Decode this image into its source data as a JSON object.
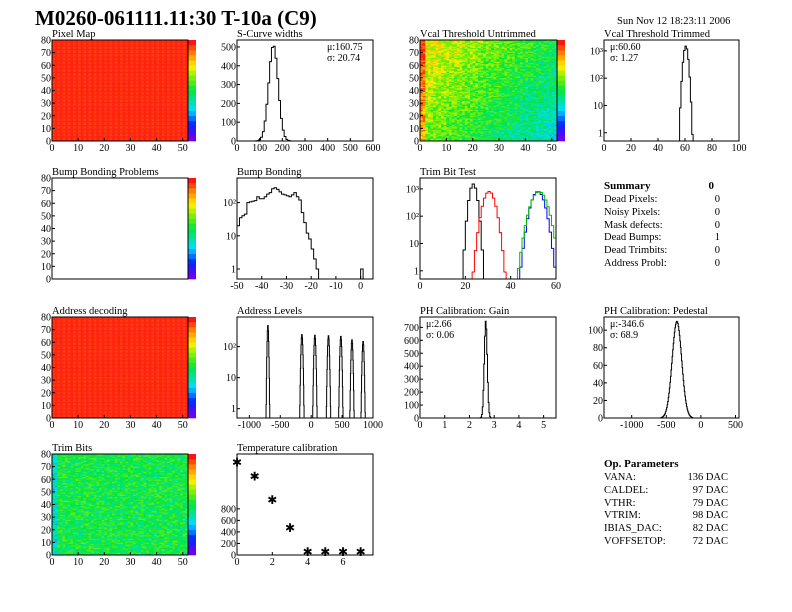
{
  "header": {
    "title": "M0260-061111.11:30 T-10a (C9)",
    "date": "Sun Nov 12 18:23:11 2006"
  },
  "summary": {
    "title": "Summary",
    "total": "0",
    "rows": [
      {
        "label": "Dead Pixels:",
        "value": "0"
      },
      {
        "label": "Noisy Pixels:",
        "value": "0"
      },
      {
        "label": "Mask defects:",
        "value": "0"
      },
      {
        "label": "Dead Bumps:",
        "value": "1"
      },
      {
        "label": "Dead Trimbits:",
        "value": "0"
      },
      {
        "label": "Address Probl:",
        "value": "0"
      }
    ]
  },
  "params": {
    "title": "Op. Parameters",
    "rows": [
      {
        "label": "VANA:",
        "value": "136 DAC"
      },
      {
        "label": "CALDEL:",
        "value": "97 DAC"
      },
      {
        "label": "VTHR:",
        "value": "79 DAC"
      },
      {
        "label": "VTRIM:",
        "value": "98 DAC"
      },
      {
        "label": "IBIAS_DAC:",
        "value": "82 DAC"
      },
      {
        "label": "VOFFSETOP:",
        "value": "72 DAC"
      }
    ]
  },
  "chart_data": [
    {
      "id": "pixelmap",
      "type": "heatmap",
      "title": "Pixel Map",
      "xlim": [
        0,
        52
      ],
      "ylim": [
        0,
        80
      ],
      "xticks": [
        "0",
        "10",
        "20",
        "30",
        "40",
        "50"
      ],
      "yticks": [
        "0",
        "10",
        "20",
        "30",
        "40",
        "50",
        "60",
        "70",
        "80"
      ],
      "pattern": "uniform-max"
    },
    {
      "id": "scurve",
      "type": "histogram",
      "title": "S-Curve widths",
      "xlim": [
        0,
        600
      ],
      "ylim": [
        0,
        537
      ],
      "xticks": [
        "0",
        "100",
        "200",
        "300",
        "400",
        "500",
        "600"
      ],
      "yticks": [
        "0",
        "100",
        "200",
        "300",
        "400",
        "500"
      ],
      "stats": [
        "μ:160.75",
        "σ: 20.74"
      ],
      "series": [
        {
          "shape": "gauss",
          "mean": 160.75,
          "sigma": 20.74,
          "peak": 510,
          "bin": 8,
          "color": "#000000"
        }
      ]
    },
    {
      "id": "vcalU",
      "type": "heatmap",
      "title": "Vcal Threshold Untrimmed",
      "xlim": [
        0,
        52
      ],
      "ylim": [
        0,
        80
      ],
      "xticks": [
        "0",
        "10",
        "20",
        "30",
        "40",
        "50"
      ],
      "yticks": [
        "0",
        "10",
        "20",
        "30",
        "40",
        "50",
        "60",
        "70",
        "80"
      ],
      "pattern": "gradient"
    },
    {
      "id": "vcalT",
      "type": "histogram",
      "title": "Vcal Threshold Trimmed",
      "log": true,
      "xlim": [
        0,
        100
      ],
      "ylim": [
        0.5,
        2500
      ],
      "xticks": [
        "0",
        "20",
        "40",
        "60",
        "80",
        "100"
      ],
      "yticks": [
        "1",
        "10",
        "10²",
        "10³"
      ],
      "stats": [
        "μ:60.60",
        "σ: 1.27"
      ],
      "series": [
        {
          "shape": "gauss",
          "mean": 60.6,
          "sigma": 1.27,
          "peak": 1500,
          "bin": 1,
          "color": "#000000"
        }
      ]
    },
    {
      "id": "bbp",
      "type": "heatmap",
      "title": "Bump Bonding Problems",
      "xlim": [
        0,
        52
      ],
      "ylim": [
        0,
        80
      ],
      "xticks": [],
      "yticks": [
        "0",
        "10",
        "20",
        "30",
        "40",
        "50",
        "60",
        "70",
        "80"
      ],
      "pattern": "empty"
    },
    {
      "id": "bb",
      "type": "histogram",
      "title": "Bump Bonding",
      "log": true,
      "xlim": [
        -50,
        5
      ],
      "ylim": [
        0.5,
        550
      ],
      "xticks": [
        "-50",
        "-40",
        "-30",
        "-20",
        "-10",
        "0"
      ],
      "yticks": [
        "1",
        "10",
        "10²"
      ],
      "stats": [],
      "series": [
        {
          "shape": "bins",
          "start": -50,
          "bin": 1,
          "color": "#000000",
          "values": [
            20,
            35,
            40,
            45,
            100,
            105,
            110,
            115,
            150,
            130,
            130,
            150,
            180,
            200,
            260,
            280,
            250,
            210,
            180,
            170,
            160,
            150,
            170,
            200,
            150,
            120,
            50,
            25,
            12,
            8,
            4,
            2,
            1,
            0,
            0,
            0,
            0,
            0,
            0,
            0,
            0,
            0,
            0,
            0,
            0,
            0,
            0,
            0,
            0,
            0,
            1,
            0,
            0,
            0,
            0
          ]
        }
      ]
    },
    {
      "id": "trim",
      "type": "histogram",
      "title": "Trim Bit Test",
      "log": true,
      "xlim": [
        0,
        60
      ],
      "ylim": [
        0.5,
        2500
      ],
      "xticks": [
        "0",
        "20",
        "40",
        "60"
      ],
      "yticks": [
        "1",
        "10",
        "10²",
        "10³"
      ],
      "stats": [],
      "series": [
        {
          "shape": "gauss",
          "mean": 23.5,
          "sigma": 1.2,
          "peak": 1500,
          "bin": 1,
          "color": "#000000"
        },
        {
          "shape": "gauss",
          "mean": 30.5,
          "sigma": 1.9,
          "peak": 800,
          "bin": 1,
          "color": "#ff0000"
        },
        {
          "shape": "gauss",
          "mean": 52,
          "sigma": 2.1,
          "peak": 800,
          "bin": 1,
          "color": "#0000ff"
        },
        {
          "shape": "gauss",
          "mean": 52.5,
          "sigma": 2.5,
          "peak": 800,
          "bin": 1,
          "color": "#00bb00"
        }
      ]
    },
    {
      "id": "addrdec",
      "type": "heatmap",
      "title": "Address decoding",
      "xlim": [
        0,
        52
      ],
      "ylim": [
        0,
        80
      ],
      "xticks": [
        "0",
        "10",
        "20",
        "30",
        "40",
        "50"
      ],
      "yticks": [
        "0",
        "10",
        "20",
        "30",
        "40",
        "50",
        "60",
        "70",
        "80"
      ],
      "pattern": "uniform-max"
    },
    {
      "id": "addrlev",
      "type": "histogram",
      "title": "Address Levels",
      "log": true,
      "xlim": [
        -1200,
        1000
      ],
      "ylim": [
        0.5,
        900
      ],
      "xticks": [
        "-1000",
        "-500",
        "0",
        "500",
        "1000"
      ],
      "yticks": [
        "1",
        "10",
        "10²"
      ],
      "stats": [],
      "series": [
        {
          "shape": "gauss",
          "mean": -700,
          "sigma": 8,
          "peak": 500,
          "bin": 5,
          "color": "#000000"
        },
        {
          "shape": "gauss",
          "mean": -150,
          "sigma": 10,
          "peak": 250,
          "bin": 5,
          "color": "#000000"
        },
        {
          "shape": "gauss",
          "mean": 60,
          "sigma": 10,
          "peak": 240,
          "bin": 5,
          "color": "#000000"
        },
        {
          "shape": "gauss",
          "mean": 280,
          "sigma": 10,
          "peak": 230,
          "bin": 5,
          "color": "#000000"
        },
        {
          "shape": "gauss",
          "mean": 480,
          "sigma": 10,
          "peak": 220,
          "bin": 5,
          "color": "#000000"
        },
        {
          "shape": "gauss",
          "mean": 660,
          "sigma": 10,
          "peak": 170,
          "bin": 5,
          "color": "#000000"
        },
        {
          "shape": "gauss",
          "mean": 840,
          "sigma": 10,
          "peak": 150,
          "bin": 5,
          "color": "#000000"
        }
      ]
    },
    {
      "id": "gain",
      "type": "histogram",
      "title": "PH Calibration: Gain",
      "xlim": [
        0,
        5.5
      ],
      "ylim": [
        0,
        780
      ],
      "xticks": [
        "0",
        "1",
        "2",
        "3",
        "4",
        "5"
      ],
      "yticks": [
        "0",
        "100",
        "200",
        "300",
        "400",
        "500",
        "600",
        "700"
      ],
      "stats": [
        "μ:2.66",
        "σ: 0.06"
      ],
      "series": [
        {
          "shape": "gauss",
          "mean": 2.66,
          "sigma": 0.06,
          "peak": 750,
          "bin": 0.03,
          "color": "#000000"
        }
      ]
    },
    {
      "id": "ped",
      "type": "histogram",
      "title": "PH Calibration: Pedestal",
      "xlim": [
        -1400,
        550
      ],
      "ylim": [
        0,
        115
      ],
      "xticks": [
        "-1000",
        "-500",
        "0",
        "500"
      ],
      "yticks": [
        "0",
        "20",
        "40",
        "60",
        "80",
        "100"
      ],
      "stats": [
        "μ:-346.6",
        "σ: 68.9"
      ],
      "series": [
        {
          "shape": "gauss",
          "mean": -346.6,
          "sigma": 68.9,
          "peak": 110,
          "bin": 8,
          "color": "#000000"
        }
      ]
    },
    {
      "id": "trimbits",
      "type": "heatmap",
      "title": "Trim Bits",
      "xlim": [
        0,
        52
      ],
      "ylim": [
        0,
        80
      ],
      "xticks": [
        "0",
        "10",
        "20",
        "30",
        "40",
        "50"
      ],
      "yticks": [
        "0",
        "10",
        "20",
        "30",
        "40",
        "50",
        "60",
        "70",
        "80"
      ],
      "pattern": "noise-mid"
    },
    {
      "id": "temp",
      "type": "scatter",
      "title": "Temperature calibration",
      "xlim": [
        0,
        7.7
      ],
      "ylim": [
        0,
        1750
      ],
      "xticks": [
        "0",
        "2",
        "4",
        "6"
      ],
      "yticks": [
        "0",
        "200",
        "400",
        "600",
        "800"
      ],
      "stats": [],
      "x": [
        0,
        1,
        2,
        3,
        4,
        5,
        6,
        7
      ],
      "y": [
        1600,
        1357,
        957,
        470,
        50,
        50,
        50,
        50
      ]
    }
  ]
}
